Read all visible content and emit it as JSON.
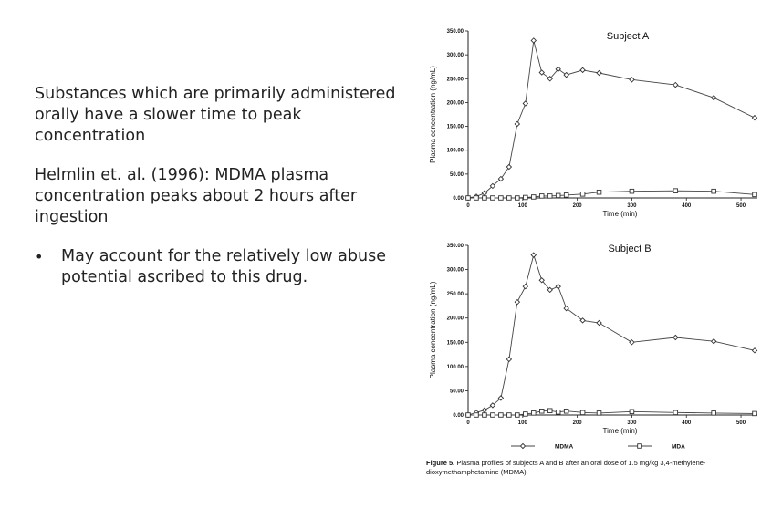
{
  "slide": {
    "paragraph1": "Substances which are primarily administered orally have a slower time to peak concentration",
    "paragraph2": "Helmlin et. al. (1996): MDMA plasma concentration peaks about 2 hours after ingestion",
    "bullet_symbol": "•",
    "bullet1": "May account for the relatively low abuse potential ascribed to this drug."
  },
  "figure": {
    "caption_label": "Figure 5.",
    "caption_text": "Plasma profiles of subjects A and B after an oral dose of 1.5 mg/kg 3,4-methylene-dioxymethamphetamine (MDMA)."
  },
  "legend": [
    {
      "name": "MDMA",
      "marker": "diamond"
    },
    {
      "name": "MDA",
      "marker": "square"
    }
  ],
  "chart_data": [
    {
      "type": "line",
      "title": "Subject A",
      "xlabel": "Time (min)",
      "ylabel": "Plasma concentration (ng/mL)",
      "xlim": [
        0,
        530
      ],
      "ylim": [
        0,
        350
      ],
      "xticks": [
        "0",
        "100",
        "200",
        "300",
        "400",
        "500"
      ],
      "yticks": [
        "0.00",
        "50.00",
        "100.00",
        "150.00",
        "200.00",
        "250.00",
        "300.00",
        "350.00"
      ],
      "series": [
        {
          "name": "MDMA",
          "marker": "diamond",
          "x": [
            0,
            15,
            30,
            45,
            60,
            75,
            90,
            105,
            120,
            135,
            150,
            165,
            180,
            210,
            240,
            300,
            380,
            450,
            525
          ],
          "y": [
            0,
            3,
            10,
            25,
            40,
            65,
            155,
            198,
            330,
            263,
            250,
            270,
            258,
            268,
            262,
            248,
            237,
            210,
            168
          ]
        },
        {
          "name": "MDA",
          "marker": "square",
          "x": [
            0,
            15,
            30,
            45,
            60,
            75,
            90,
            105,
            120,
            135,
            150,
            165,
            180,
            210,
            240,
            300,
            380,
            450,
            525
          ],
          "y": [
            0,
            0,
            0,
            0,
            0,
            0,
            0,
            1,
            2,
            4,
            4,
            5,
            6,
            8,
            12,
            14,
            15,
            14,
            7
          ]
        }
      ]
    },
    {
      "type": "line",
      "title": "Subject B",
      "xlabel": "Time (min)",
      "ylabel": "Plasma concentration (ng/mL)",
      "xlim": [
        0,
        530
      ],
      "ylim": [
        0,
        350
      ],
      "xticks": [
        "0",
        "100",
        "200",
        "300",
        "400",
        "500"
      ],
      "yticks": [
        "0.00",
        "50.00",
        "100.00",
        "150.00",
        "200.00",
        "250.00",
        "300.00",
        "350.00"
      ],
      "series": [
        {
          "name": "MDMA",
          "marker": "diamond",
          "x": [
            0,
            15,
            30,
            45,
            60,
            75,
            90,
            105,
            120,
            135,
            150,
            165,
            180,
            210,
            240,
            300,
            380,
            450,
            525
          ],
          "y": [
            0,
            5,
            10,
            20,
            35,
            115,
            233,
            265,
            330,
            278,
            258,
            265,
            220,
            195,
            190,
            150,
            160,
            152,
            133
          ]
        },
        {
          "name": "MDA",
          "marker": "square",
          "x": [
            0,
            15,
            30,
            45,
            60,
            75,
            90,
            105,
            120,
            135,
            150,
            165,
            180,
            210,
            240,
            300,
            380,
            450,
            525
          ],
          "y": [
            0,
            0,
            0,
            0,
            0,
            0,
            0,
            2,
            4,
            8,
            9,
            6,
            8,
            5,
            4,
            7,
            5,
            4,
            3
          ]
        }
      ]
    }
  ]
}
